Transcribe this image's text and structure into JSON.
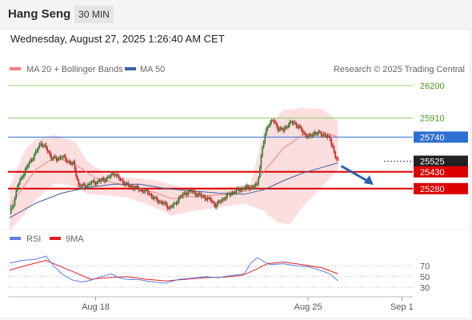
{
  "header": {
    "title": "Hang Seng",
    "timeframe": "30 MIN"
  },
  "datetime": "Wednesday, August 27, 2025 1:26:40 AM CET",
  "legend": {
    "ma20": "MA 20 + Bollinger Bands",
    "ma50": "MA 50",
    "credit": "Research © 2025 Trading Central",
    "rsi": "RSI",
    "rsi_ma": "9MA"
  },
  "colors": {
    "ma20": "#f08080",
    "ma50": "#3b5fa0",
    "bollinger": "#fdd8d8",
    "support": "#dd0000",
    "resistance": "#8fcf6a",
    "pivot": "#2e6fd1",
    "candle_up": "#2e7d32",
    "candle_down": "#c62828",
    "rsi": "#5b7fe0",
    "rsi_ma": "#e02020"
  },
  "chart_data": {
    "type": "candlestick",
    "price_levels": [
      {
        "label": "26200",
        "value": 26200,
        "kind": "resistance"
      },
      {
        "label": "25910",
        "value": 25910,
        "kind": "resistance"
      },
      {
        "label": "25740",
        "value": 25740,
        "kind": "pivot"
      },
      {
        "label": "25525",
        "value": 25525,
        "kind": "last"
      },
      {
        "label": "25430",
        "value": 25430,
        "kind": "support"
      },
      {
        "label": "25280",
        "value": 25280,
        "kind": "support"
      }
    ],
    "x_ticks": [
      "Aug 18",
      "Aug 25",
      "Sep 1"
    ],
    "x_ticks_at": [
      66,
      229,
      301
    ],
    "n_bars": 310,
    "close": [
      [
        0,
        25060
      ],
      [
        3,
        25150
      ],
      [
        6,
        25300
      ],
      [
        10,
        25400
      ],
      [
        14,
        25490
      ],
      [
        20,
        25600
      ],
      [
        24,
        25690
      ],
      [
        28,
        25640
      ],
      [
        32,
        25560
      ],
      [
        36,
        25540
      ],
      [
        40,
        25570
      ],
      [
        45,
        25520
      ],
      [
        49,
        25500
      ],
      [
        53,
        25310
      ],
      [
        58,
        25300
      ],
      [
        62,
        25330
      ],
      [
        67,
        25340
      ],
      [
        72,
        25360
      ],
      [
        76,
        25380
      ],
      [
        80,
        25420
      ],
      [
        84,
        25370
      ],
      [
        88,
        25330
      ],
      [
        92,
        25300
      ],
      [
        96,
        25290
      ],
      [
        100,
        25270
      ],
      [
        106,
        25250
      ],
      [
        110,
        25200
      ],
      [
        114,
        25170
      ],
      [
        118,
        25150
      ],
      [
        122,
        25110
      ],
      [
        127,
        25140
      ],
      [
        130,
        25200
      ],
      [
        134,
        25230
      ],
      [
        138,
        25260
      ],
      [
        142,
        25240
      ],
      [
        146,
        25220
      ],
      [
        150,
        25200
      ],
      [
        154,
        25180
      ],
      [
        158,
        25130
      ],
      [
        162,
        25170
      ],
      [
        166,
        25210
      ],
      [
        170,
        25240
      ],
      [
        174,
        25260
      ],
      [
        178,
        25280
      ],
      [
        182,
        25290
      ],
      [
        186,
        25295
      ],
      [
        190,
        25310
      ],
      [
        194,
        25650
      ],
      [
        198,
        25850
      ],
      [
        202,
        25890
      ],
      [
        206,
        25820
      ],
      [
        210,
        25800
      ],
      [
        214,
        25860
      ],
      [
        218,
        25870
      ],
      [
        222,
        25830
      ],
      [
        226,
        25770
      ],
      [
        230,
        25740
      ],
      [
        234,
        25780
      ],
      [
        238,
        25770
      ],
      [
        242,
        25760
      ],
      [
        246,
        25720
      ],
      [
        248,
        25650
      ],
      [
        250,
        25560
      ],
      [
        252,
        25525
      ]
    ],
    "ma20": [
      [
        0,
        25120
      ],
      [
        20,
        25450
      ],
      [
        35,
        25560
      ],
      [
        50,
        25500
      ],
      [
        65,
        25380
      ],
      [
        80,
        25330
      ],
      [
        95,
        25300
      ],
      [
        110,
        25250
      ],
      [
        125,
        25190
      ],
      [
        140,
        25210
      ],
      [
        155,
        25220
      ],
      [
        170,
        25230
      ],
      [
        185,
        25270
      ],
      [
        195,
        25430
      ],
      [
        210,
        25640
      ],
      [
        225,
        25760
      ],
      [
        240,
        25790
      ],
      [
        252,
        25740
      ]
    ],
    "ma50": [
      [
        0,
        25020
      ],
      [
        20,
        25150
      ],
      [
        40,
        25240
      ],
      [
        60,
        25290
      ],
      [
        80,
        25320
      ],
      [
        100,
        25320
      ],
      [
        120,
        25280
      ],
      [
        140,
        25260
      ],
      [
        160,
        25240
      ],
      [
        180,
        25230
      ],
      [
        195,
        25270
      ],
      [
        210,
        25350
      ],
      [
        225,
        25420
      ],
      [
        240,
        25470
      ],
      [
        252,
        25510
      ]
    ],
    "bollinger_upper": [
      [
        0,
        25300
      ],
      [
        12,
        25630
      ],
      [
        20,
        25720
      ],
      [
        35,
        25760
      ],
      [
        50,
        25700
      ],
      [
        60,
        25520
      ],
      [
        75,
        25400
      ],
      [
        90,
        25380
      ],
      [
        110,
        25360
      ],
      [
        130,
        25300
      ],
      [
        150,
        25290
      ],
      [
        170,
        25300
      ],
      [
        185,
        25320
      ],
      [
        195,
        25800
      ],
      [
        210,
        25980
      ],
      [
        225,
        26000
      ],
      [
        240,
        25990
      ],
      [
        252,
        25880
      ]
    ],
    "bollinger_lower": [
      [
        0,
        24900
      ],
      [
        12,
        25060
      ],
      [
        20,
        25180
      ],
      [
        35,
        25330
      ],
      [
        50,
        25300
      ],
      [
        60,
        25230
      ],
      [
        75,
        25220
      ],
      [
        90,
        25200
      ],
      [
        110,
        25120
      ],
      [
        125,
        25040
      ],
      [
        140,
        25080
      ],
      [
        160,
        25110
      ],
      [
        180,
        25150
      ],
      [
        195,
        25080
      ],
      [
        205,
        24980
      ],
      [
        215,
        24960
      ],
      [
        225,
        25120
      ],
      [
        240,
        25300
      ],
      [
        252,
        25450
      ]
    ],
    "rsi": [
      [
        0,
        75
      ],
      [
        10,
        80
      ],
      [
        20,
        82
      ],
      [
        28,
        88
      ],
      [
        33,
        72
      ],
      [
        40,
        55
      ],
      [
        48,
        44
      ],
      [
        55,
        40
      ],
      [
        62,
        43
      ],
      [
        70,
        50
      ],
      [
        78,
        55
      ],
      [
        84,
        48
      ],
      [
        90,
        45
      ],
      [
        100,
        44
      ],
      [
        110,
        40
      ],
      [
        120,
        38
      ],
      [
        130,
        45
      ],
      [
        140,
        47
      ],
      [
        150,
        50
      ],
      [
        160,
        48
      ],
      [
        170,
        52
      ],
      [
        180,
        55
      ],
      [
        185,
        75
      ],
      [
        190,
        85
      ],
      [
        195,
        78
      ],
      [
        200,
        72
      ],
      [
        210,
        74
      ],
      [
        220,
        70
      ],
      [
        230,
        68
      ],
      [
        238,
        62
      ],
      [
        246,
        55
      ],
      [
        252,
        42
      ]
    ],
    "rsi_ma": [
      [
        0,
        62
      ],
      [
        15,
        72
      ],
      [
        28,
        80
      ],
      [
        38,
        70
      ],
      [
        50,
        58
      ],
      [
        62,
        45
      ],
      [
        75,
        48
      ],
      [
        90,
        50
      ],
      [
        105,
        45
      ],
      [
        120,
        42
      ],
      [
        135,
        45
      ],
      [
        150,
        48
      ],
      [
        165,
        49
      ],
      [
        178,
        52
      ],
      [
        188,
        62
      ],
      [
        198,
        74
      ],
      [
        210,
        77
      ],
      [
        225,
        72
      ],
      [
        240,
        66
      ],
      [
        252,
        55
      ]
    ],
    "rsi_levels": [
      70,
      50,
      30
    ],
    "forecast": [
      [
        252,
        25525
      ],
      [
        262,
        25300
      ]
    ]
  }
}
